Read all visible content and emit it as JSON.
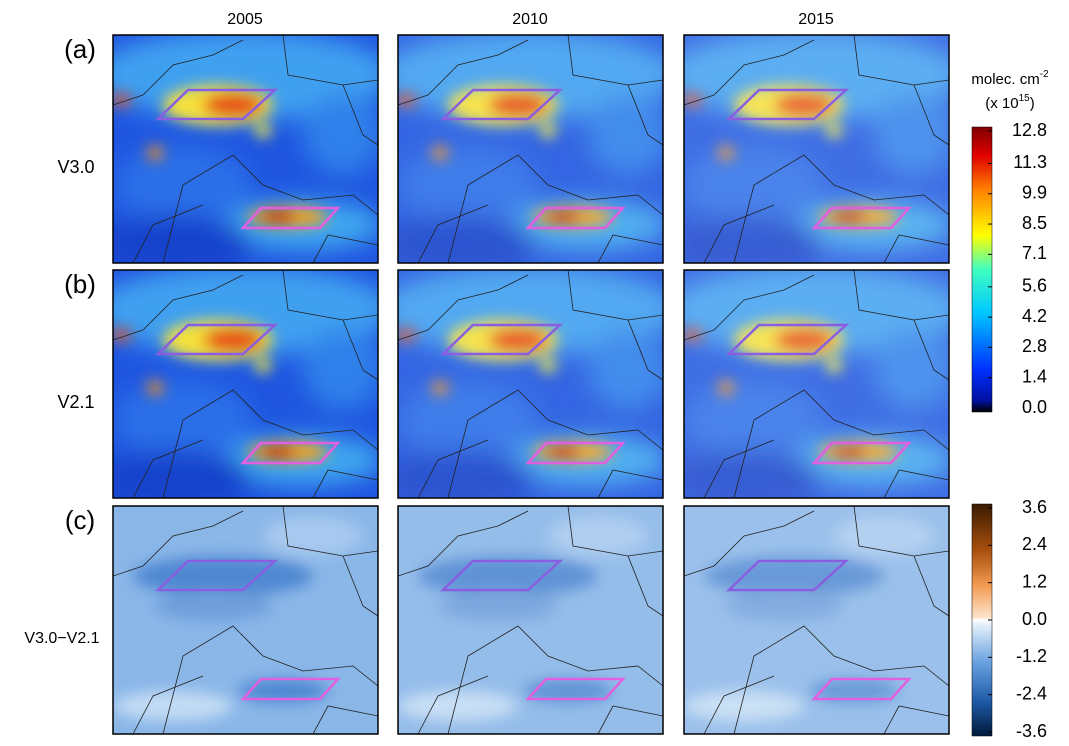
{
  "columns": [
    "2005",
    "2010",
    "2015"
  ],
  "rows": [
    {
      "letter": "(a)",
      "label": "V3.0"
    },
    {
      "letter": "(b)",
      "label": "V2.1"
    },
    {
      "letter": "(c)",
      "label": "V3.0−V2.1"
    }
  ],
  "colorbars": [
    {
      "title": {
        "text": "molec. cm",
        "sup": "-2"
      },
      "subtitle": {
        "text": "(x 10",
        "sup": "15",
        "after": ")"
      },
      "ticks": [
        12.8,
        11.3,
        9.9,
        8.5,
        7.1,
        5.6,
        4.2,
        2.8,
        1.4,
        {
          "value": 0,
          "label": "0.0"
        }
      ]
    },
    {
      "ticks": [
        3.6,
        2.4,
        1.2,
        {
          "value": 0,
          "label": "0.0"
        },
        -1.2,
        -2.4,
        -3.6
      ]
    }
  ]
}
